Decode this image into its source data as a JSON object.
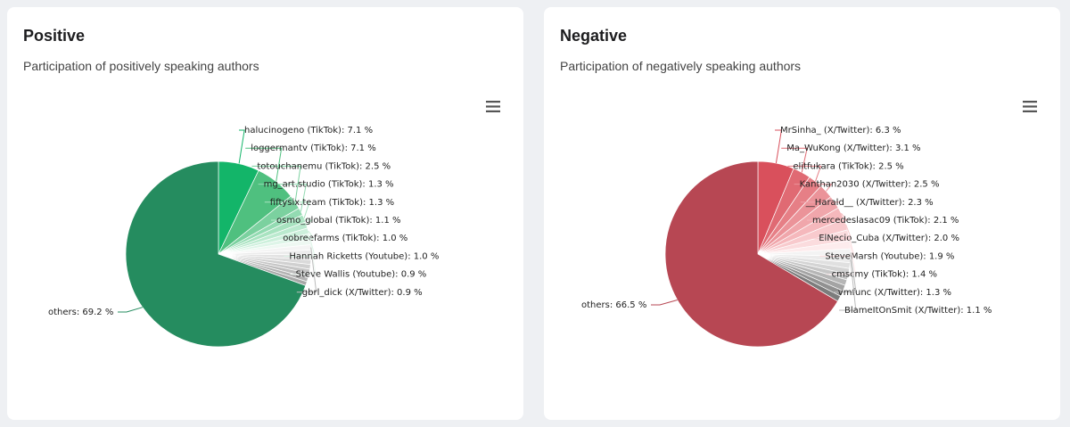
{
  "colors": {
    "positive_main": "#258c5f",
    "negative_main": "#b74753"
  },
  "chart_data": [
    {
      "id": "positive",
      "type": "pie",
      "title": "Positive",
      "subtitle": "Participation of positively speaking authors",
      "menu_icon": "hamburger-menu-icon",
      "slices": [
        {
          "label": "halucinogeno (TikTok)",
          "value": 7.1,
          "display": "halucinogeno (TikTok): 7.1 %",
          "color": "#13b569"
        },
        {
          "label": "loggermantv (TikTok)",
          "value": 7.1,
          "display": "loggermantv (TikTok): 7.1 %",
          "color": "#4fc07f"
        },
        {
          "label": "totouchanemu (TikTok)",
          "value": 2.5,
          "display": "totouchanemu (TikTok): 2.5 %",
          "color": "#7bd19f"
        },
        {
          "label": "mg_art.studio (TikTok)",
          "value": 1.3,
          "display": "mg_art.studio (TikTok): 1.3 %",
          "color": "#93dbb2"
        },
        {
          "label": "fiftysix.team (TikTok)",
          "value": 1.3,
          "display": "fiftysix.team (TikTok): 1.3 %",
          "color": "#a8e3c0"
        },
        {
          "label": "osmo_global (TikTok)",
          "value": 1.1,
          "display": "osmo_global (TikTok): 1.1 %",
          "color": "#bbeacf"
        },
        {
          "label": "oobreefarms (TikTok)",
          "value": 1.0,
          "display": "oobreefarms (TikTok): 1.0 %",
          "color": "#cdf0dc"
        },
        {
          "label": "Hannah Ricketts (Youtube)",
          "value": 1.0,
          "display": "Hannah Ricketts (Youtube): 1.0 %",
          "color": "#def5e8"
        },
        {
          "label": "Steve Wallis (Youtube)",
          "value": 0.9,
          "display": "Steve Wallis (Youtube): 0.9 %",
          "color": "#eef8f2"
        },
        {
          "label": "gbrl_dick (X/Twitter)",
          "value": 0.9,
          "display": "gbrl_dick (X/Twitter): 0.9 %",
          "color": "#f4f4f4"
        },
        {
          "label": "",
          "value": 0.85,
          "display": "",
          "color": "#ececec"
        },
        {
          "label": "",
          "value": 0.85,
          "display": "",
          "color": "#e3e3e3"
        },
        {
          "label": "",
          "value": 0.8,
          "display": "",
          "color": "#dadada"
        },
        {
          "label": "",
          "value": 0.8,
          "display": "",
          "color": "#d0d0d0"
        },
        {
          "label": "",
          "value": 0.75,
          "display": "",
          "color": "#c6c6c6"
        },
        {
          "label": "",
          "value": 0.75,
          "display": "",
          "color": "#bcbcbc"
        },
        {
          "label": "",
          "value": 0.7,
          "display": "",
          "color": "#b2b2b2"
        },
        {
          "label": "",
          "value": 0.7,
          "display": "",
          "color": "#a8a8a8"
        },
        {
          "label": "others",
          "value": 69.2,
          "display": "others: 69.2 %",
          "color": "#258c5f"
        }
      ]
    },
    {
      "id": "negative",
      "type": "pie",
      "title": "Negative",
      "subtitle": "Participation of negatively speaking authors",
      "menu_icon": "hamburger-menu-icon",
      "slices": [
        {
          "label": "MrSinha_ (X/Twitter)",
          "value": 6.3,
          "display": "MrSinha_ (X/Twitter): 6.3 %",
          "color": "#d9505c"
        },
        {
          "label": "Ma_WuKong (X/Twitter)",
          "value": 3.1,
          "display": "Ma_WuKong (X/Twitter): 3.1 %",
          "color": "#e06a73"
        },
        {
          "label": "elitfukara (TikTok)",
          "value": 2.5,
          "display": "elitfukara (TikTok): 2.5 %",
          "color": "#e67f86"
        },
        {
          "label": "Kanthan2030 (X/Twitter)",
          "value": 2.5,
          "display": "Kanthan2030 (X/Twitter): 2.5 %",
          "color": "#eb9399"
        },
        {
          "label": "__Harald__ (X/Twitter)",
          "value": 2.3,
          "display": "__Harald__ (X/Twitter): 2.3 %",
          "color": "#f0a6ab"
        },
        {
          "label": "mercedeslasac09 (TikTok)",
          "value": 2.1,
          "display": "mercedeslasac09 (TikTok): 2.1 %",
          "color": "#f5b8bc"
        },
        {
          "label": "ElNecio_Cuba (X/Twitter)",
          "value": 2.0,
          "display": "ElNecio_Cuba (X/Twitter): 2.0 %",
          "color": "#f8cacd"
        },
        {
          "label": "SteveMarsh (Youtube)",
          "value": 1.9,
          "display": "SteveMarsh (Youtube): 1.9 %",
          "color": "#fbdcde"
        },
        {
          "label": "cmscmy (TikTok)",
          "value": 1.4,
          "display": "cmscmy (TikTok): 1.4 %",
          "color": "#fdeced"
        },
        {
          "label": "vmfunc (X/Twitter)",
          "value": 1.3,
          "display": "vmfunc (X/Twitter): 1.3 %",
          "color": "#f3f3f3"
        },
        {
          "label": "BlameItOnSmit (X/Twitter)",
          "value": 1.1,
          "display": "BlameItOnSmit (X/Twitter): 1.1 %",
          "color": "#ebebeb"
        },
        {
          "label": "",
          "value": 1.0,
          "display": "",
          "color": "#e0e0e0"
        },
        {
          "label": "",
          "value": 1.0,
          "display": "",
          "color": "#d4d4d4"
        },
        {
          "label": "",
          "value": 1.0,
          "display": "",
          "color": "#c6c6c6"
        },
        {
          "label": "",
          "value": 1.0,
          "display": "",
          "color": "#b6b6b6"
        },
        {
          "label": "",
          "value": 1.0,
          "display": "",
          "color": "#a4a4a4"
        },
        {
          "label": "",
          "value": 1.0,
          "display": "",
          "color": "#919191"
        },
        {
          "label": "",
          "value": 1.0,
          "display": "",
          "color": "#7c7c7c"
        },
        {
          "label": "others",
          "value": 66.5,
          "display": "others: 66.5 %",
          "color": "#b74753"
        }
      ]
    }
  ]
}
